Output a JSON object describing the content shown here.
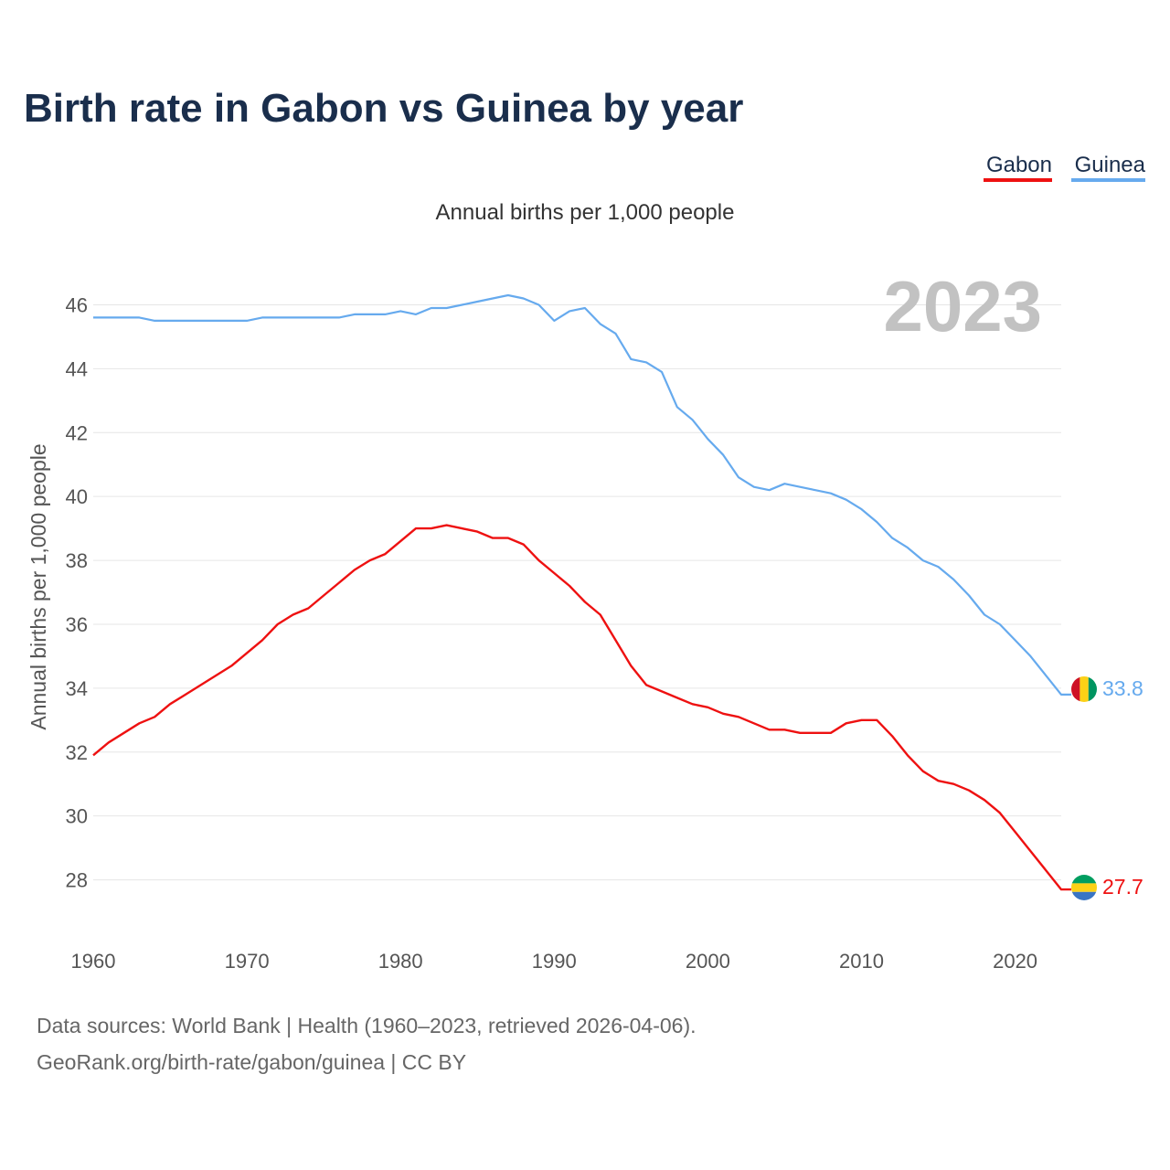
{
  "colors": {
    "title": "#1a2e4c",
    "gabon": "#ee1111",
    "guinea": "#66aaee",
    "grid": "#e6e6e6",
    "year_watermark": "#c2c2c2"
  },
  "chart_data": {
    "type": "line",
    "title": "Birth rate in Gabon vs Guinea by year",
    "subtitle": "Annual births per 1,000 people",
    "ylabel": "Annual births per 1,000 people",
    "xlabel": "",
    "xlim": [
      1960,
      2023
    ],
    "ylim": [
      26.5,
      46.9
    ],
    "yticks": [
      28,
      30,
      32,
      34,
      36,
      38,
      40,
      42,
      44,
      46
    ],
    "xticks": [
      1960,
      1970,
      1980,
      1990,
      2000,
      2010,
      2020
    ],
    "year_display": "2023",
    "grid": true,
    "legend_position": "top-right",
    "x": [
      1960,
      1961,
      1962,
      1963,
      1964,
      1965,
      1966,
      1967,
      1968,
      1969,
      1970,
      1971,
      1972,
      1973,
      1974,
      1975,
      1976,
      1977,
      1978,
      1979,
      1980,
      1981,
      1982,
      1983,
      1984,
      1985,
      1986,
      1987,
      1988,
      1989,
      1990,
      1991,
      1992,
      1993,
      1994,
      1995,
      1996,
      1997,
      1998,
      1999,
      2000,
      2001,
      2002,
      2003,
      2004,
      2005,
      2006,
      2007,
      2008,
      2009,
      2010,
      2011,
      2012,
      2013,
      2014,
      2015,
      2016,
      2017,
      2018,
      2019,
      2020,
      2021,
      2022,
      2023
    ],
    "series": [
      {
        "name": "Gabon",
        "color": "#ee1111",
        "end_label": "27.7",
        "values": [
          31.9,
          32.3,
          32.6,
          32.9,
          33.1,
          33.5,
          33.8,
          34.1,
          34.4,
          34.7,
          35.1,
          35.5,
          36.0,
          36.3,
          36.5,
          36.9,
          37.3,
          37.7,
          38.0,
          38.2,
          38.6,
          39.0,
          39.0,
          39.1,
          39.0,
          38.9,
          38.7,
          38.7,
          38.5,
          38.0,
          37.6,
          37.2,
          36.7,
          36.3,
          35.5,
          34.7,
          34.1,
          33.9,
          33.7,
          33.5,
          33.4,
          33.2,
          33.1,
          32.9,
          32.7,
          32.7,
          32.6,
          32.6,
          32.6,
          32.9,
          33.0,
          33.0,
          32.5,
          31.9,
          31.4,
          31.1,
          31.0,
          30.8,
          30.5,
          30.1,
          29.5,
          28.9,
          28.3,
          27.7
        ]
      },
      {
        "name": "Guinea",
        "color": "#66aaee",
        "end_label": "33.8",
        "values": [
          45.6,
          45.6,
          45.6,
          45.6,
          45.5,
          45.5,
          45.5,
          45.5,
          45.5,
          45.5,
          45.5,
          45.6,
          45.6,
          45.6,
          45.6,
          45.6,
          45.6,
          45.7,
          45.7,
          45.7,
          45.8,
          45.7,
          45.9,
          45.9,
          46.0,
          46.1,
          46.2,
          46.3,
          46.2,
          46.0,
          45.5,
          45.8,
          45.9,
          45.4,
          45.1,
          44.3,
          44.2,
          43.9,
          42.8,
          42.4,
          41.8,
          41.3,
          40.6,
          40.3,
          40.2,
          40.4,
          40.3,
          40.2,
          40.1,
          39.9,
          39.6,
          39.2,
          38.7,
          38.4,
          38.0,
          37.8,
          37.4,
          36.9,
          36.3,
          36.0,
          35.5,
          35.0,
          34.4,
          33.8
        ]
      }
    ]
  },
  "legend": {
    "items": [
      "Gabon",
      "Guinea"
    ]
  },
  "footer": {
    "line1": "Data sources: World Bank | Health (1960–2023, retrieved 2026-04-06).",
    "line2": "GeoRank.org/birth-rate/gabon/guinea | CC BY"
  }
}
